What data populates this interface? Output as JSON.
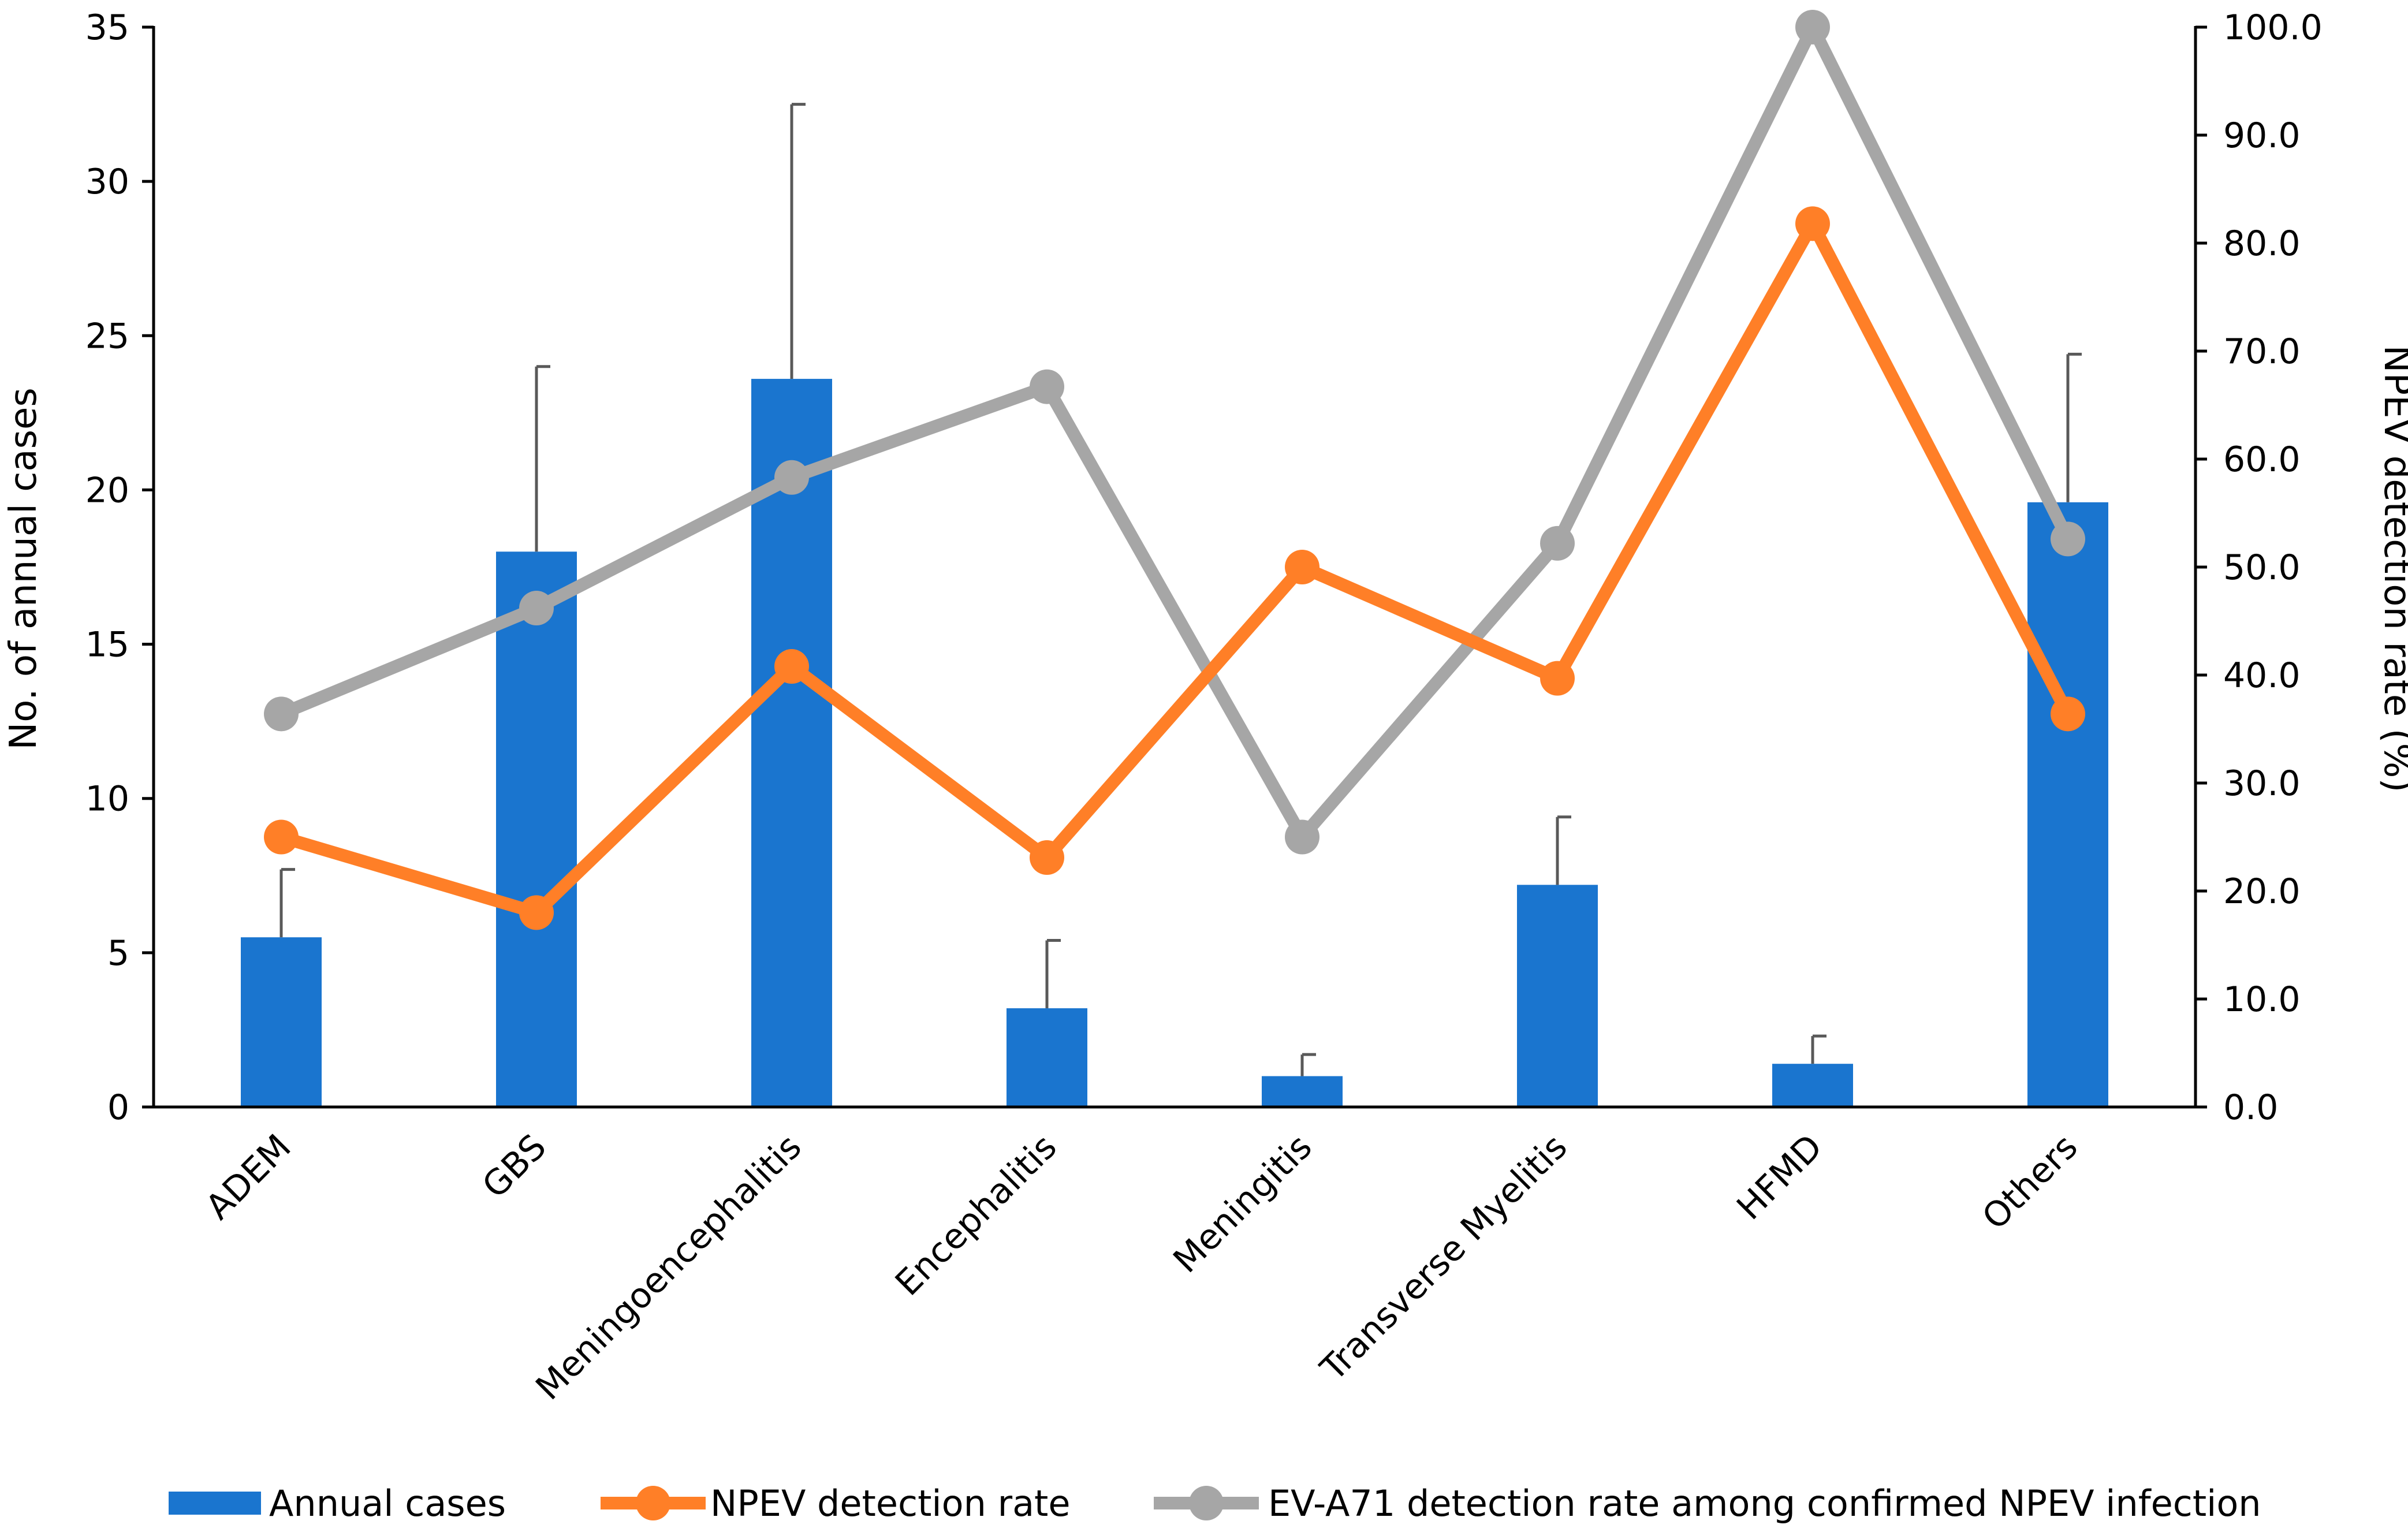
{
  "chart_data": {
    "type": "bar+line",
    "categories": [
      "ADEM",
      "GBS",
      "Meningoencephalitis",
      "Encephalitis",
      "Meningitis",
      "Transverse Myelitis",
      "HFMD",
      "Others"
    ],
    "bars": {
      "name": "Annual cases",
      "axis": "left",
      "values": [
        5.5,
        18.0,
        23.6,
        3.2,
        1.0,
        7.2,
        1.4,
        19.6
      ],
      "error_upper": [
        7.7,
        24.0,
        32.5,
        5.4,
        1.7,
        9.4,
        2.3,
        24.4
      ],
      "color": "#1A75CF"
    },
    "series": [
      {
        "name": "NPEV detection rate",
        "axis": "right",
        "values": [
          25.0,
          18.0,
          40.8,
          23.1,
          50.0,
          39.7,
          81.8,
          36.4
        ],
        "color": "#FF7F27"
      },
      {
        "name": "EV-A71 detection rate among confirmed NPEV infection",
        "axis": "right",
        "values": [
          36.4,
          46.2,
          58.3,
          66.7,
          25.0,
          52.2,
          100.0,
          52.6
        ],
        "color": "#A6A6A6"
      }
    ],
    "ylabel": "No. of annual cases",
    "y2label": "NPEV detection rate (%)",
    "ylim": [
      0,
      35
    ],
    "y2lim": [
      0,
      100
    ],
    "yticks": [
      "0",
      "5",
      "10",
      "15",
      "20",
      "25",
      "30",
      "35"
    ],
    "y2ticks": [
      "0.0",
      "10.0",
      "20.0",
      "30.0",
      "40.0",
      "50.0",
      "60.0",
      "70.0",
      "80.0",
      "90.0",
      "100.0"
    ],
    "grid": false,
    "legend": {
      "position": "bottom",
      "items": [
        "Annual cases",
        "NPEV detection rate",
        "EV-A71 detection rate among confirmed NPEV infection"
      ]
    }
  }
}
